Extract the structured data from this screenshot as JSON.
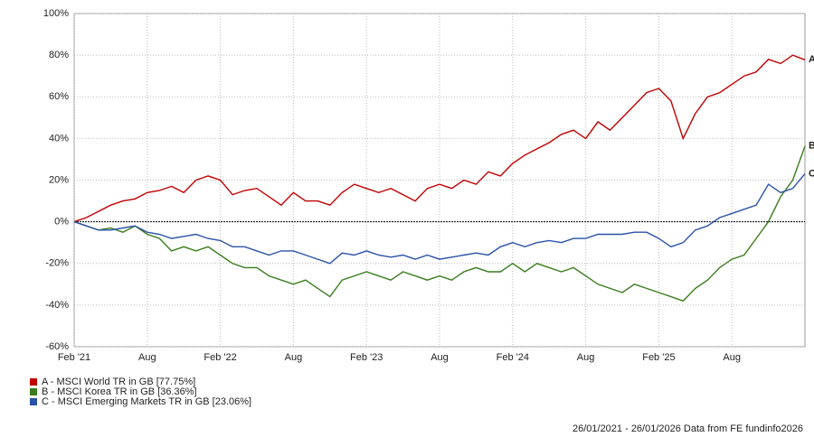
{
  "chart_data": {
    "type": "line",
    "categories": [
      "Feb '21",
      null,
      null,
      null,
      null,
      null,
      "Aug",
      null,
      null,
      null,
      null,
      null,
      "Feb '22",
      null,
      null,
      null,
      null,
      null,
      "Aug",
      null,
      null,
      null,
      null,
      null,
      "Feb '23",
      null,
      null,
      null,
      null,
      null,
      "Aug",
      null,
      null,
      null,
      null,
      null,
      "Feb '24",
      null,
      null,
      null,
      null,
      null,
      "Aug",
      null,
      null,
      null,
      null,
      null,
      "Feb '25",
      null,
      null,
      null,
      null,
      null,
      "Aug",
      null,
      null,
      null,
      null,
      null,
      null
    ],
    "series": [
      {
        "name": "A - MSCI World TR in GB [77.75%]",
        "end_label": "A",
        "color": "#c00000",
        "values": [
          0,
          2,
          5,
          8,
          10,
          11,
          14,
          15,
          17,
          14,
          20,
          22,
          20,
          13,
          15,
          16,
          12,
          8,
          14,
          10,
          10,
          8,
          14,
          18,
          16,
          14,
          16,
          13,
          10,
          16,
          18,
          16,
          20,
          18,
          24,
          22,
          28,
          32,
          35,
          38,
          42,
          44,
          40,
          48,
          44,
          50,
          56,
          62,
          64,
          58,
          40,
          52,
          60,
          62,
          66,
          70,
          72,
          78,
          76,
          80,
          77.75
        ]
      },
      {
        "name": "B - MSCI Korea TR in GB [36.36%]",
        "end_label": "B",
        "color": "#3a7d1e",
        "values": [
          0,
          -2,
          -4,
          -3,
          -5,
          -2,
          -6,
          -8,
          -14,
          -12,
          -14,
          -12,
          -16,
          -20,
          -22,
          -22,
          -26,
          -28,
          -30,
          -28,
          -32,
          -36,
          -28,
          -26,
          -24,
          -26,
          -28,
          -24,
          -26,
          -28,
          -26,
          -28,
          -24,
          -22,
          -24,
          -24,
          -20,
          -24,
          -20,
          -22,
          -24,
          -22,
          -26,
          -30,
          -32,
          -34,
          -30,
          -32,
          -34,
          -36,
          -38,
          -32,
          -28,
          -22,
          -18,
          -16,
          -8,
          0,
          12,
          20,
          36.36
        ]
      },
      {
        "name": "C - MSCI Emerging Markets TR in GB [23.06%]",
        "end_label": "C",
        "color": "#2a52a8",
        "values": [
          0,
          -2,
          -4,
          -4,
          -3,
          -2,
          -5,
          -6,
          -8,
          -7,
          -6,
          -8,
          -9,
          -12,
          -12,
          -14,
          -16,
          -14,
          -14,
          -16,
          -18,
          -20,
          -15,
          -16,
          -14,
          -16,
          -17,
          -16,
          -18,
          -16,
          -18,
          -17,
          -16,
          -15,
          -16,
          -12,
          -10,
          -12,
          -10,
          -9,
          -10,
          -8,
          -8,
          -6,
          -6,
          -6,
          -5,
          -5,
          -8,
          -12,
          -10,
          -4,
          -2,
          2,
          4,
          6,
          8,
          18,
          14,
          16,
          23.06
        ]
      }
    ],
    "ylim": [
      -60,
      100
    ],
    "yticks": [
      {
        "value": -60,
        "label": "-60%"
      },
      {
        "value": -40,
        "label": "-40%"
      },
      {
        "value": -20,
        "label": "-20%"
      },
      {
        "value": 0,
        "label": "0%"
      },
      {
        "value": 20,
        "label": "20%"
      },
      {
        "value": 40,
        "label": "40%"
      },
      {
        "value": 60,
        "label": "60%"
      },
      {
        "value": 80,
        "label": "80%"
      },
      {
        "value": 100,
        "label": "100%"
      }
    ],
    "grid": true,
    "footer": "26/01/2021 - 26/01/2026 Data from FE fundinfo2026"
  }
}
